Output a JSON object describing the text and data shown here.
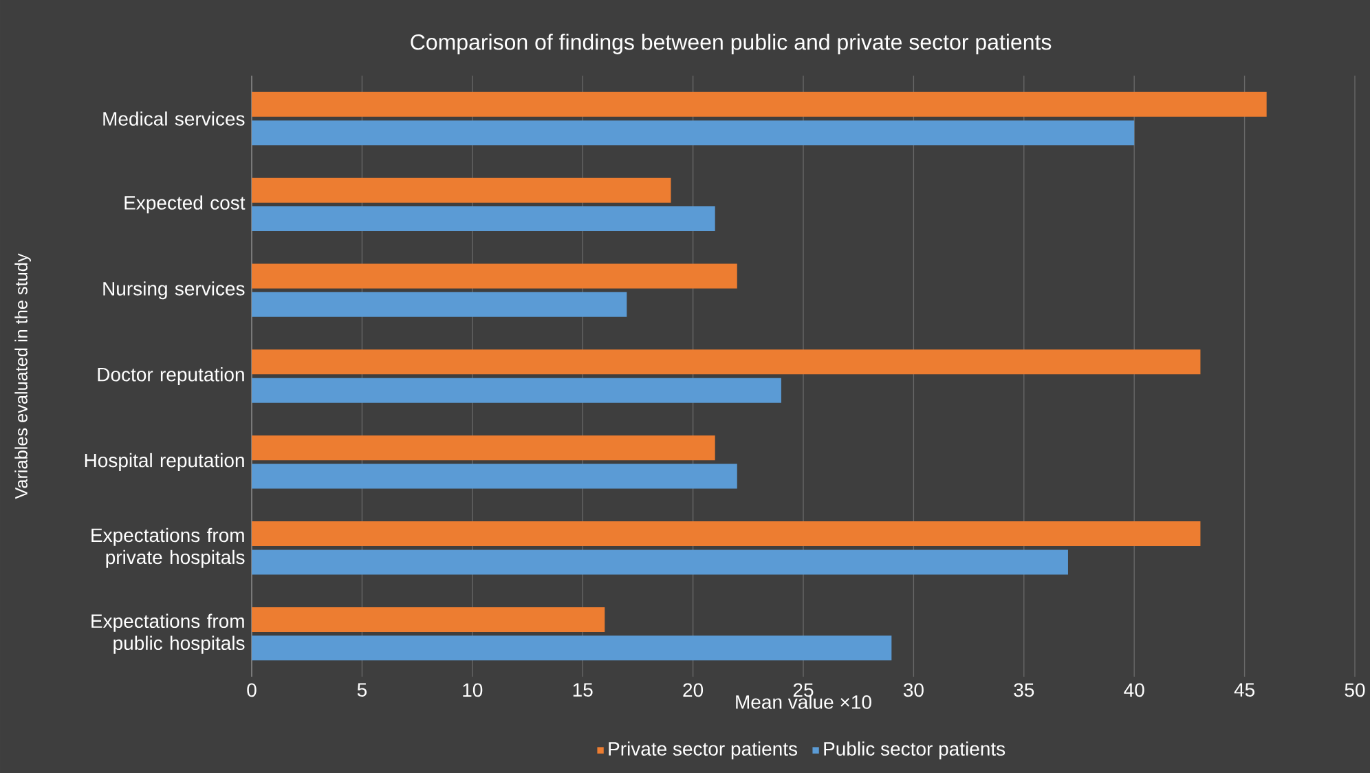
{
  "chart_data": {
    "type": "bar",
    "orientation": "horizontal",
    "title": "Comparison of findings between public and private sector patients",
    "xlabel": "Mean value ×10",
    "ylabel": "Variables evaluated in the study",
    "categories": [
      "Medical services",
      "Expected cost",
      "Nursing services",
      "Doctor reputation",
      "Hospital reputation",
      "Expectations from private hospitals",
      "Expectations from public hospitals"
    ],
    "series": [
      {
        "name": "Private sector patients",
        "color": "#ed7d31",
        "values": [
          46,
          19,
          22,
          43,
          21,
          43,
          16
        ]
      },
      {
        "name": "Public sector patients",
        "color": "#5b9bd5",
        "values": [
          40,
          21,
          17,
          24,
          22,
          37,
          29
        ]
      }
    ],
    "xlim": [
      0,
      50
    ],
    "xticks": [
      0,
      5,
      10,
      15,
      20,
      25,
      30,
      35,
      40,
      45,
      50
    ],
    "grid": "x",
    "legend": "bottom"
  }
}
